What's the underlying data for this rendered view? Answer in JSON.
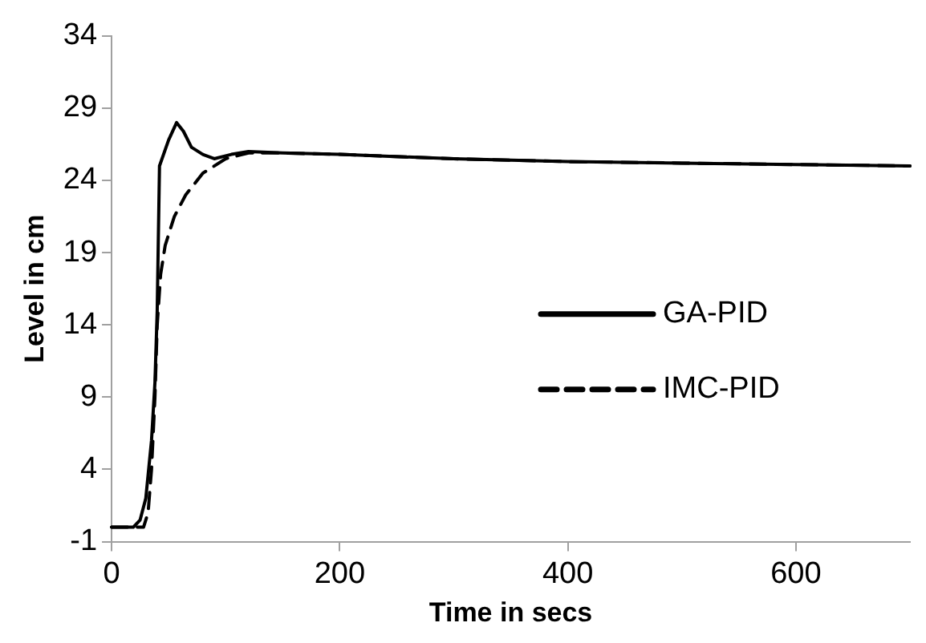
{
  "chart_data": {
    "type": "line",
    "xlabel": "Time in secs",
    "ylabel": "Level in cm",
    "xlim": [
      0,
      700
    ],
    "xticks": [
      0,
      200,
      400,
      600
    ],
    "ylim": [
      -1,
      34
    ],
    "yticks": [
      -1,
      4,
      9,
      14,
      19,
      24,
      29,
      34
    ],
    "grid": false,
    "legend": "right",
    "marker": "none",
    "series": [
      {
        "name": "GA-PID",
        "color": "#000000",
        "line_style": "solid",
        "x": [
          0,
          19,
          25,
          30,
          35,
          38,
          40,
          42,
          50,
          57,
          63,
          70,
          80,
          90,
          105,
          120,
          150,
          200,
          300,
          400,
          500,
          600,
          700
        ],
        "values": [
          0,
          0,
          0.5,
          2,
          6,
          10,
          15,
          25,
          26.8,
          28,
          27.4,
          26.3,
          25.8,
          25.5,
          25.8,
          26,
          25.9,
          25.8,
          25.5,
          25.3,
          25.2,
          25.1,
          25
        ]
      },
      {
        "name": "IMC-PID",
        "color": "#000000",
        "line_style": "dashed",
        "x": [
          0,
          28,
          32,
          35,
          38,
          40,
          43,
          47,
          55,
          65,
          80,
          100,
          120,
          150,
          200,
          300,
          400,
          500,
          600,
          700
        ],
        "values": [
          0,
          0,
          1,
          4,
          9,
          14,
          17.5,
          19.5,
          21.5,
          23,
          24.5,
          25.5,
          25.9,
          25.9,
          25.8,
          25.5,
          25.3,
          25.2,
          25.1,
          25
        ]
      }
    ]
  }
}
